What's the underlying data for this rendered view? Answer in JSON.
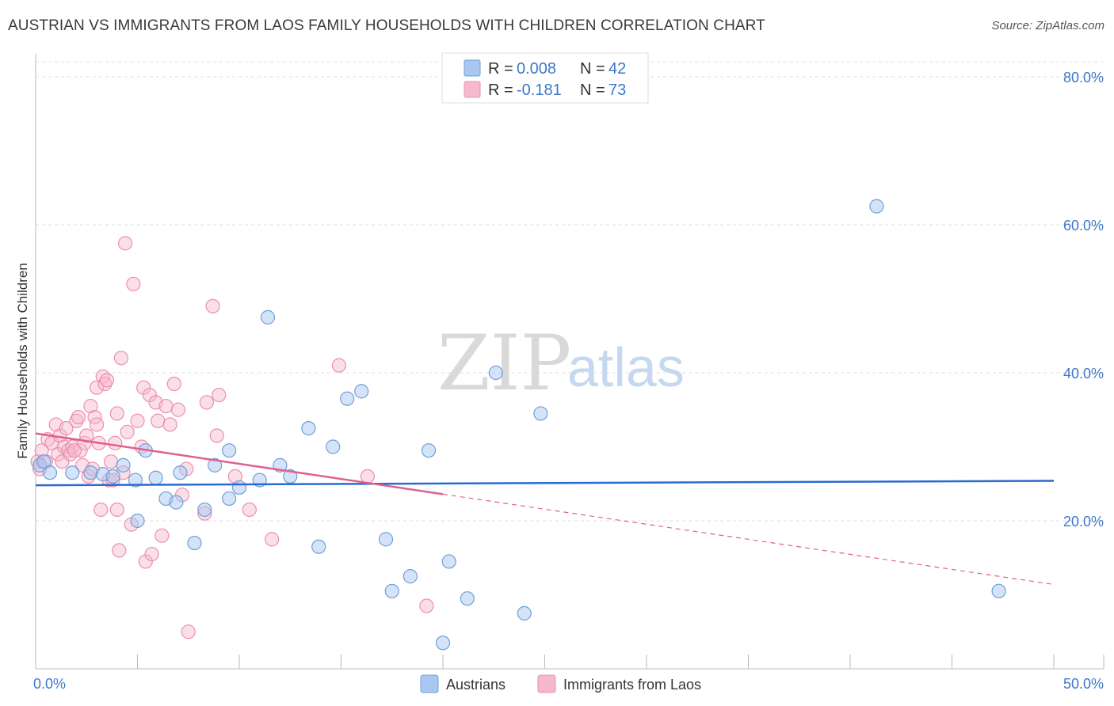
{
  "title": "AUSTRIAN VS IMMIGRANTS FROM LAOS FAMILY HOUSEHOLDS WITH CHILDREN CORRELATION CHART",
  "source": "Source: ZipAtlas.com",
  "watermark": {
    "zip": "ZIP",
    "atlas": "atlas"
  },
  "colors": {
    "blue_fill": "#a9c7f0",
    "blue_stroke": "#6f9fd8",
    "blue_line": "#2a6bd1",
    "pink_fill": "#f6b8cb",
    "pink_stroke": "#ec8fae",
    "pink_line": "#e0608f",
    "tick_text": "#3d78c9",
    "grid": "#dddddd"
  },
  "legend": {
    "row1": {
      "r_label": "R =",
      "r_value": "0.008",
      "n_label": "N =",
      "n_value": "42"
    },
    "row2": {
      "r_label": "R =",
      "r_value": "-0.181",
      "n_label": "N =",
      "n_value": "73"
    }
  },
  "chart_data": {
    "type": "scatter",
    "title": "AUSTRIAN VS IMMIGRANTS FROM LAOS FAMILY HOUSEHOLDS WITH CHILDREN CORRELATION CHART",
    "xlabel": "",
    "ylabel": "Family Households with Children",
    "xlim": [
      0,
      50
    ],
    "ylim": [
      0,
      82
    ],
    "x_tick_labels": [
      "0.0%",
      "50.0%"
    ],
    "y_ticks": [
      20,
      40,
      60,
      80
    ],
    "y_tick_labels": [
      "20.0%",
      "40.0%",
      "60.0%",
      "80.0%"
    ],
    "grid": true,
    "legend_position": "top-center",
    "series": [
      {
        "name": "Austrians",
        "color": "#a9c7f0",
        "points": [
          [
            0.2,
            27.5
          ],
          [
            0.4,
            28.0
          ],
          [
            0.7,
            26.5
          ],
          [
            1.8,
            26.5
          ],
          [
            2.7,
            26.5
          ],
          [
            3.3,
            26.3
          ],
          [
            3.8,
            26.0
          ],
          [
            4.3,
            27.5
          ],
          [
            4.9,
            25.5
          ],
          [
            5.0,
            20.0
          ],
          [
            5.4,
            29.5
          ],
          [
            5.9,
            25.8
          ],
          [
            6.4,
            23.0
          ],
          [
            6.9,
            22.5
          ],
          [
            7.1,
            26.5
          ],
          [
            7.8,
            17.0
          ],
          [
            8.3,
            21.5
          ],
          [
            8.8,
            27.5
          ],
          [
            9.5,
            23.0
          ],
          [
            9.5,
            29.5
          ],
          [
            10.0,
            24.5
          ],
          [
            11.0,
            25.5
          ],
          [
            11.4,
            47.5
          ],
          [
            12.0,
            27.5
          ],
          [
            12.5,
            26.0
          ],
          [
            13.4,
            32.5
          ],
          [
            13.9,
            16.5
          ],
          [
            14.6,
            30.0
          ],
          [
            15.3,
            36.5
          ],
          [
            16.0,
            37.5
          ],
          [
            17.2,
            17.5
          ],
          [
            18.4,
            12.5
          ],
          [
            19.3,
            29.5
          ],
          [
            20.3,
            14.5
          ],
          [
            21.2,
            9.5
          ],
          [
            22.6,
            40.0
          ],
          [
            24.0,
            7.5
          ],
          [
            24.8,
            34.5
          ],
          [
            41.3,
            62.5
          ],
          [
            47.3,
            10.5
          ],
          [
            17.5,
            10.5
          ],
          [
            20.0,
            3.5
          ]
        ]
      },
      {
        "name": "Immigrants from Laos",
        "color": "#f6b8cb",
        "points": [
          [
            0.1,
            28.0
          ],
          [
            0.2,
            27.0
          ],
          [
            0.3,
            29.5
          ],
          [
            0.5,
            28.0
          ],
          [
            0.6,
            31.0
          ],
          [
            0.8,
            30.5
          ],
          [
            1.0,
            33.0
          ],
          [
            1.1,
            29.0
          ],
          [
            1.2,
            31.5
          ],
          [
            1.3,
            28.0
          ],
          [
            1.4,
            30.0
          ],
          [
            1.5,
            32.5
          ],
          [
            1.6,
            29.5
          ],
          [
            1.7,
            29.0
          ],
          [
            1.8,
            30.0
          ],
          [
            2.0,
            33.5
          ],
          [
            2.1,
            34.0
          ],
          [
            2.2,
            29.5
          ],
          [
            2.3,
            27.5
          ],
          [
            2.4,
            30.5
          ],
          [
            2.5,
            31.5
          ],
          [
            2.6,
            26.0
          ],
          [
            2.7,
            35.5
          ],
          [
            2.8,
            27.0
          ],
          [
            2.9,
            34.0
          ],
          [
            3.0,
            38.0
          ],
          [
            3.0,
            33.0
          ],
          [
            3.1,
            30.5
          ],
          [
            3.2,
            21.5
          ],
          [
            3.3,
            39.5
          ],
          [
            3.4,
            38.5
          ],
          [
            3.6,
            25.5
          ],
          [
            3.7,
            28.0
          ],
          [
            3.8,
            25.5
          ],
          [
            3.9,
            30.5
          ],
          [
            4.0,
            21.5
          ],
          [
            4.0,
            34.5
          ],
          [
            4.1,
            16.0
          ],
          [
            4.2,
            42.0
          ],
          [
            4.3,
            26.5
          ],
          [
            4.4,
            57.5
          ],
          [
            4.5,
            32.0
          ],
          [
            4.7,
            19.5
          ],
          [
            4.8,
            52.0
          ],
          [
            5.0,
            33.5
          ],
          [
            5.2,
            30.0
          ],
          [
            5.3,
            38.0
          ],
          [
            5.4,
            14.5
          ],
          [
            5.6,
            37.0
          ],
          [
            5.7,
            15.5
          ],
          [
            5.9,
            36.0
          ],
          [
            6.2,
            18.0
          ],
          [
            6.4,
            35.5
          ],
          [
            6.6,
            33.0
          ],
          [
            6.8,
            38.5
          ],
          [
            7.0,
            35.0
          ],
          [
            7.2,
            23.5
          ],
          [
            7.4,
            27.0
          ],
          [
            7.5,
            5.0
          ],
          [
            8.3,
            21.0
          ],
          [
            8.4,
            36.0
          ],
          [
            8.7,
            49.0
          ],
          [
            8.9,
            31.5
          ],
          [
            9.0,
            37.0
          ],
          [
            9.8,
            26.0
          ],
          [
            10.5,
            21.5
          ],
          [
            11.6,
            17.5
          ],
          [
            14.9,
            41.0
          ],
          [
            16.3,
            26.0
          ],
          [
            19.2,
            8.5
          ],
          [
            3.5,
            39.0
          ],
          [
            1.9,
            29.5
          ],
          [
            6.0,
            33.5
          ]
        ]
      }
    ],
    "trendlines": [
      {
        "series": "Austrians",
        "x": [
          0,
          50
        ],
        "y": [
          24.8,
          25.4
        ],
        "style": "solid"
      },
      {
        "series": "Immigrants from Laos",
        "x": [
          0,
          20
        ],
        "y": [
          31.8,
          23.6
        ],
        "style": "solid"
      },
      {
        "series": "Immigrants from Laos",
        "x": [
          20,
          50
        ],
        "y": [
          23.6,
          11.4
        ],
        "style": "dashed"
      }
    ]
  },
  "bottom_legend": {
    "item1": "Austrians",
    "item2": "Immigrants from Laos"
  }
}
